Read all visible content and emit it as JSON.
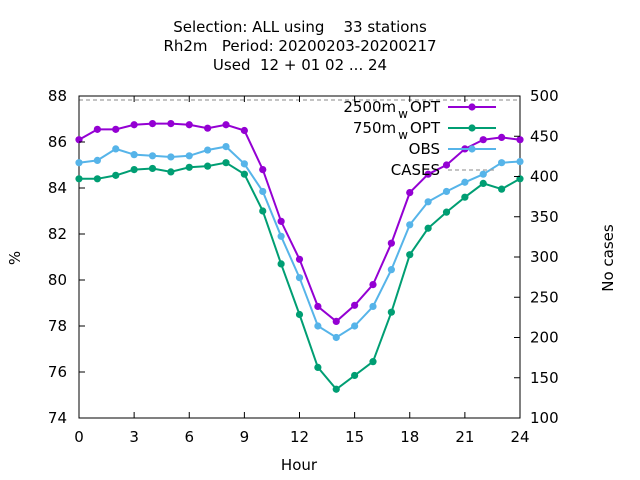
{
  "chart_data": {
    "type": "line",
    "title_lines": [
      "Selection: ALL using    33 stations",
      "Rh2m   Period: 20200203-20200217",
      "Used  12 + 01 02 ... 24"
    ],
    "xlabel": "Hour",
    "ylabel": "%",
    "y2label": "No cases",
    "xlim": [
      0,
      24
    ],
    "ylim": [
      74,
      88
    ],
    "y2lim": [
      100,
      500
    ],
    "xticks": [
      "0",
      "3",
      "6",
      "9",
      "12",
      "15",
      "18",
      "21",
      "24"
    ],
    "yticks": [
      "74",
      "76",
      "78",
      "80",
      "82",
      "84",
      "86",
      "88"
    ],
    "y2ticks": [
      "100",
      "150",
      "200",
      "250",
      "300",
      "350",
      "400",
      "450",
      "500"
    ],
    "legend_position": "top-right",
    "x": [
      0,
      1,
      2,
      3,
      4,
      5,
      6,
      7,
      8,
      9,
      10,
      11,
      12,
      13,
      14,
      15,
      16,
      17,
      18,
      19,
      20,
      21,
      22,
      23,
      24
    ],
    "series": [
      {
        "name": "2500m",
        "name_sub": "w",
        "name_suffix": "OPT",
        "color": "#9400d3",
        "marker": "filled-circle",
        "values": [
          86.1,
          86.55,
          86.55,
          86.75,
          86.8,
          86.8,
          86.75,
          86.6,
          86.75,
          86.5,
          84.8,
          82.55,
          80.9,
          78.85,
          78.2,
          78.9,
          79.8,
          81.6,
          83.8,
          84.6,
          85.0,
          85.7,
          86.1,
          86.2,
          86.1
        ]
      },
      {
        "name": "750m",
        "name_sub": "w",
        "name_suffix": "OPT",
        "color": "#009e73",
        "marker": "filled-circle",
        "values": [
          84.4,
          84.4,
          84.55,
          84.8,
          84.85,
          84.7,
          84.9,
          84.95,
          85.1,
          84.6,
          83.0,
          80.7,
          78.5,
          76.2,
          75.25,
          75.85,
          76.45,
          78.6,
          81.1,
          82.25,
          82.95,
          83.6,
          84.2,
          83.95,
          84.4
        ]
      },
      {
        "name": "OBS",
        "color": "#56b4e9",
        "marker": "filled-circle",
        "values": [
          85.1,
          85.2,
          85.7,
          85.45,
          85.4,
          85.35,
          85.4,
          85.65,
          85.8,
          85.05,
          83.85,
          81.9,
          80.1,
          78.0,
          77.5,
          78.0,
          78.85,
          80.45,
          82.4,
          83.4,
          83.85,
          84.25,
          84.6,
          85.1,
          85.15
        ]
      },
      {
        "name": "CASES",
        "color": "#a0a0a0",
        "style": "dashed",
        "axis": "y2",
        "values": [
          495,
          495,
          495,
          495,
          495,
          495,
          495,
          495,
          495,
          495,
          495,
          495,
          495,
          495,
          495,
          495,
          495,
          495,
          495,
          495,
          495,
          495,
          495,
          495,
          495
        ]
      }
    ]
  }
}
